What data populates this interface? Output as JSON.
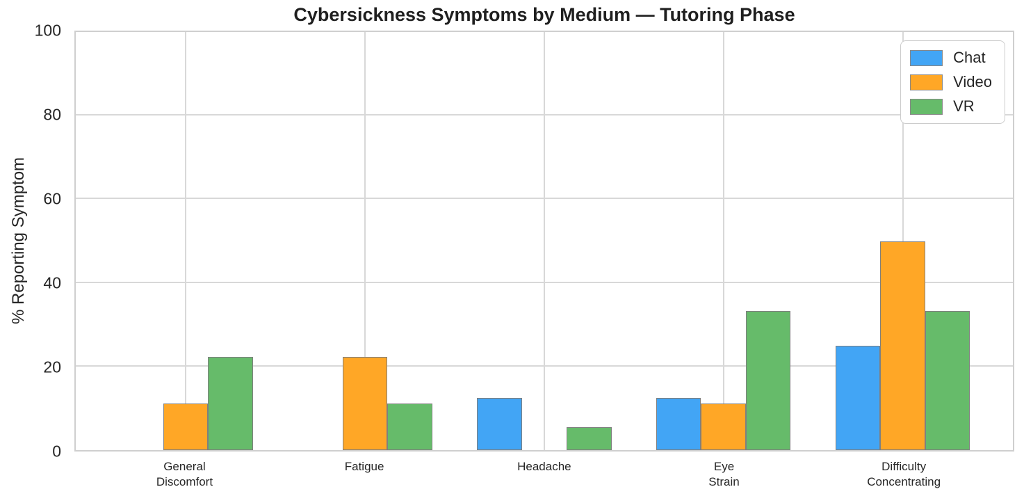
{
  "title": "Cybersickness Symptoms by Medium — Tutoring Phase",
  "chart_data": {
    "type": "bar",
    "title": "Cybersickness Symptoms by Medium — Tutoring Phase",
    "xlabel": "",
    "ylabel": "% Reporting Symptom",
    "ylim": [
      0,
      100
    ],
    "yticks": [
      0,
      20,
      40,
      60,
      80,
      100
    ],
    "grid": true,
    "legend_position": "upper right",
    "categories": [
      "General\nDiscomfort",
      "Fatigue",
      "Headache",
      "Eye\nStrain",
      "Difficulty\nConcentrating"
    ],
    "series": [
      {
        "name": "Chat",
        "color": "#42A5F5",
        "values": [
          0,
          0,
          12.5,
          12.5,
          25.0
        ]
      },
      {
        "name": "Video",
        "color": "#FFA726",
        "values": [
          11.11,
          22.22,
          0,
          11.11,
          50.0
        ]
      },
      {
        "name": "VR",
        "color": "#66BB6A",
        "values": [
          22.22,
          11.11,
          5.56,
          33.33,
          33.33
        ]
      }
    ],
    "bar_edge_color": "#7F7F7F"
  },
  "colors": {
    "grid": "#D8D8D8",
    "spine": "#CFCFCF",
    "text": "#262626",
    "background": "#FFFFFF"
  }
}
